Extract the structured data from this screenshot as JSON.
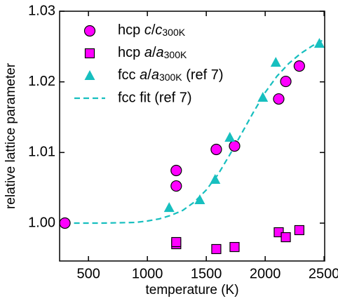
{
  "chart_data": {
    "type": "scatter",
    "xlabel": "temperature (K)",
    "ylabel": "relative lattice parameter",
    "xlim": [
      255,
      2505
    ],
    "ylim": [
      0.99464,
      1.03
    ],
    "xticks": [
      500,
      1000,
      1500,
      2000,
      2500
    ],
    "yticks": [
      {
        "value": 1.0,
        "label": "1.00"
      },
      1.01,
      1.02,
      1.03
    ],
    "legend": "upper left",
    "series": [
      {
        "name": "hcp c/c300K",
        "color": "#ff00ff",
        "marker": "circle",
        "x": [
          300,
          1245,
          1245,
          1585,
          1740,
          2115,
          2175,
          2290
        ],
        "values": [
          1.0,
          1.00745,
          1.00526,
          1.01043,
          1.01092,
          1.01758,
          1.02006,
          1.02224
        ]
      },
      {
        "name": "hcp a/a300K",
        "color": "#ff00ff",
        "marker": "square",
        "x": [
          1245,
          1245,
          1585,
          1740,
          2115,
          2175,
          2290
        ],
        "values": [
          0.99702,
          0.99732,
          0.99633,
          0.99662,
          0.99871,
          0.99801,
          0.99901
        ]
      },
      {
        "name": "fcc a/a300K (ref 7)",
        "color": "#17bfbf",
        "marker": "triangle",
        "x": [
          1185,
          1445,
          1575,
          1700,
          1980,
          2090,
          2460
        ],
        "values": [
          1.00218,
          1.00328,
          1.00616,
          1.01212,
          1.01778,
          1.02274,
          1.02542
        ]
      },
      {
        "name": "fcc fit (ref 7)",
        "color": "#17bfbf",
        "line_style": "dashed",
        "x": [
          300,
          600,
          900,
          1000,
          1100,
          1200,
          1300,
          1400,
          1500,
          1600,
          1700,
          1800,
          1900,
          2000,
          2100,
          2200,
          2300,
          2400,
          2500
        ],
        "values": [
          1.0,
          1.0,
          1.0001,
          1.0003,
          1.0006,
          1.0011,
          1.0018,
          1.003,
          1.0047,
          1.0069,
          1.0097,
          1.0127,
          1.0157,
          1.0185,
          1.0208,
          1.0226,
          1.024,
          1.0251,
          1.026
        ]
      }
    ]
  }
}
